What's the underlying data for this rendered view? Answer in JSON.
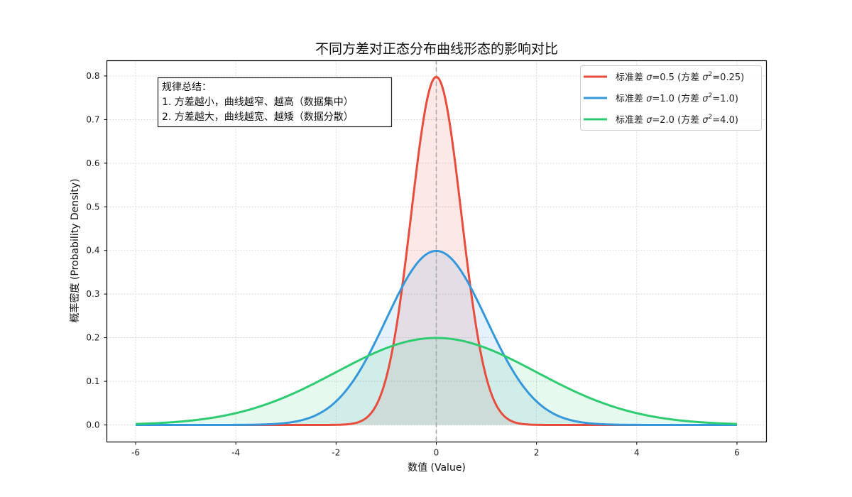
{
  "chart_data": {
    "type": "line",
    "title": "不同方差对正态分布曲线形态的影响对比",
    "xlabel": "数值 (Value)",
    "ylabel": "概率密度 (Probability Density)",
    "xlim": [
      -6.6,
      6.6
    ],
    "ylim": [
      -0.04,
      0.84
    ],
    "xticks": [
      -6,
      -4,
      -2,
      0,
      2,
      4,
      6
    ],
    "xtick_labels": [
      "-6",
      "-4",
      "-2",
      "0",
      "2",
      "4",
      "6"
    ],
    "yticks": [
      0.0,
      0.1,
      0.2,
      0.3,
      0.4,
      0.5,
      0.6,
      0.7,
      0.8
    ],
    "ytick_labels": [
      "0.0",
      "0.1",
      "0.2",
      "0.3",
      "0.4",
      "0.5",
      "0.6",
      "0.7",
      "0.8"
    ],
    "grid": true,
    "legend_position": "upper right",
    "x_range": [
      -6,
      6
    ],
    "vertical_reference_line": {
      "x": 0,
      "style": "dashed",
      "color": "#aaaaaa"
    },
    "series": [
      {
        "name": "标准差 σ=0.5 (方差 σ²=0.25)",
        "sigma": 0.5,
        "variance": 0.25,
        "mean": 0,
        "peak": 0.798,
        "color": "#e74c3c",
        "fill": "#e74c3c",
        "fill_alpha": 0.12
      },
      {
        "name": "标准差 σ=1.0 (方差 σ²=1.0)",
        "sigma": 1.0,
        "variance": 1.0,
        "mean": 0,
        "peak": 0.399,
        "color": "#3498db",
        "fill": "#3498db",
        "fill_alpha": 0.12
      },
      {
        "name": "标准差 σ=2.0 (方差 σ²=4.0)",
        "sigma": 2.0,
        "variance": 4.0,
        "mean": 0,
        "peak": 0.199,
        "color": "#2ecc71",
        "fill": "#2ecc71",
        "fill_alpha": 0.12
      }
    ],
    "annotation": {
      "lines": [
        "规律总结：",
        "1. 方差越小，曲线越窄、越高（数据集中）",
        "2. 方差越大，曲线越宽、越矮（数据分散）"
      ]
    }
  },
  "legend": {
    "items": [
      {
        "prefix": "标准差 ",
        "sigma_sym": "σ",
        "sigma_val": "=0.5 (方差 ",
        "sq_sym": "σ",
        "sup": "2",
        "var_val": "=0.25)"
      },
      {
        "prefix": "标准差 ",
        "sigma_sym": "σ",
        "sigma_val": "=1.0 (方差 ",
        "sq_sym": "σ",
        "sup": "2",
        "var_val": "=1.0)"
      },
      {
        "prefix": "标准差 ",
        "sigma_sym": "σ",
        "sigma_val": "=2.0 (方差 ",
        "sq_sym": "σ",
        "sup": "2",
        "var_val": "=4.0)"
      }
    ]
  }
}
